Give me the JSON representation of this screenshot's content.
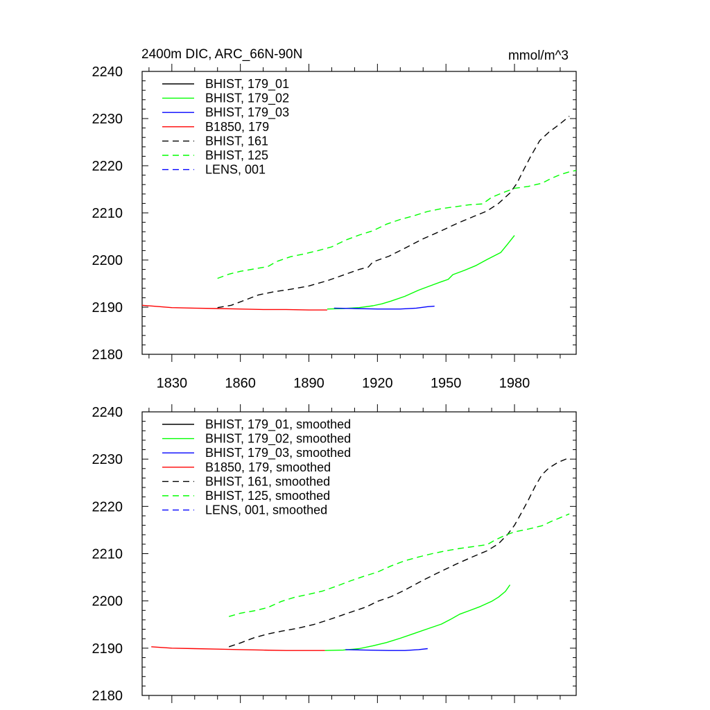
{
  "chart_data": [
    {
      "type": "line",
      "title": "2400m DIC, ARC_66N-90N",
      "units": "mmol/m^3",
      "xlim": [
        1817,
        2007
      ],
      "ylim": [
        2180,
        2240
      ],
      "yticks": [
        2180,
        2190,
        2200,
        2210,
        2220,
        2230,
        2240
      ],
      "xticks": [
        1830,
        1860,
        1890,
        1920,
        1950,
        1980
      ],
      "xtick_labels": [
        "1830",
        "1860",
        "1890",
        "1920",
        "1950",
        "1980"
      ],
      "show_x_labels": true,
      "legend_position": "top-left",
      "series": [
        {
          "name": "BHIST, 179_01",
          "color": "#000000",
          "dash": "solid",
          "x": [],
          "y": []
        },
        {
          "name": "BHIST, 179_02",
          "color": "#00ff00",
          "dash": "solid",
          "x": [
            1898,
            1905,
            1912,
            1918,
            1922,
            1926,
            1932,
            1938,
            1943,
            1948,
            1951,
            1953,
            1958,
            1963,
            1968,
            1974,
            1977,
            1980
          ],
          "y": [
            2189.6,
            2189.7,
            2189.9,
            2190.3,
            2190.7,
            2191.3,
            2192.3,
            2193.6,
            2194.5,
            2195.4,
            2195.9,
            2196.9,
            2197.8,
            2198.8,
            2200.1,
            2201.6,
            2203.4,
            2205.2
          ]
        },
        {
          "name": "BHIST, 179_03",
          "color": "#0000ff",
          "dash": "solid",
          "x": [
            1901,
            1910,
            1920,
            1930,
            1937,
            1942,
            1945
          ],
          "y": [
            2189.8,
            2189.7,
            2189.6,
            2189.6,
            2189.8,
            2190.1,
            2190.2
          ]
        },
        {
          "name": "B1850, 179",
          "color": "#ff0000",
          "dash": "solid",
          "x": [
            1817,
            1822,
            1830,
            1840,
            1850,
            1860,
            1870,
            1880,
            1890,
            1898
          ],
          "y": [
            2190.4,
            2190.2,
            2189.9,
            2189.8,
            2189.7,
            2189.6,
            2189.5,
            2189.5,
            2189.4,
            2189.4
          ]
        },
        {
          "name": "BHIST, 161",
          "color": "#000000",
          "dash": "dash",
          "x": [
            1850,
            1856,
            1862,
            1868,
            1875,
            1882,
            1890,
            1898,
            1905,
            1912,
            1916,
            1918,
            1925,
            1932,
            1940,
            1948,
            1955,
            1962,
            1968,
            1973,
            1978,
            1981,
            1984,
            1987,
            1991,
            1995,
            2000,
            2004
          ],
          "y": [
            2189.9,
            2190.4,
            2191.5,
            2192.6,
            2193.3,
            2193.8,
            2194.5,
            2195.6,
            2196.8,
            2198.0,
            2198.5,
            2199.6,
            2200.8,
            2202.5,
            2204.5,
            2206.2,
            2207.8,
            2209.2,
            2210.4,
            2212.0,
            2214.2,
            2216.2,
            2219.1,
            2221.9,
            2225.3,
            2227.1,
            2228.9,
            2230.5
          ]
        },
        {
          "name": "BHIST, 125",
          "color": "#00ff00",
          "dash": "dash",
          "x": [
            1850,
            1855,
            1860,
            1866,
            1872,
            1876,
            1882,
            1888,
            1894,
            1900,
            1906,
            1912,
            1918,
            1924,
            1930,
            1936,
            1942,
            1948,
            1954,
            1960,
            1966,
            1970,
            1974,
            1980,
            1986,
            1992,
            1996,
            2000,
            2004,
            2007
          ],
          "y": [
            2196.1,
            2197.0,
            2197.6,
            2198.1,
            2198.6,
            2199.7,
            2200.7,
            2201.3,
            2202.0,
            2202.8,
            2204.2,
            2205.3,
            2206.2,
            2207.6,
            2208.6,
            2209.4,
            2210.3,
            2210.9,
            2211.3,
            2211.7,
            2211.9,
            2213.3,
            2214.1,
            2215.2,
            2215.6,
            2216.3,
            2217.3,
            2218.1,
            2218.7,
            2219.0
          ]
        },
        {
          "name": "LENS, 001",
          "color": "#0000ff",
          "dash": "dash",
          "x": [],
          "y": []
        }
      ]
    },
    {
      "type": "line",
      "title": "",
      "units": "",
      "xlim": [
        1817,
        2007
      ],
      "ylim": [
        2180,
        2240
      ],
      "yticks": [
        2180,
        2190,
        2200,
        2210,
        2220,
        2230,
        2240
      ],
      "xticks": [
        1830,
        1860,
        1890,
        1920,
        1950,
        1980
      ],
      "xtick_labels": [],
      "show_x_labels": false,
      "legend_position": "top-left",
      "series": [
        {
          "name": "BHIST, 179_01, smoothed",
          "color": "#000000",
          "dash": "solid",
          "x": [],
          "y": []
        },
        {
          "name": "BHIST, 179_02, smoothed",
          "color": "#00ff00",
          "dash": "solid",
          "x": [
            1897,
            1905,
            1912,
            1918,
            1924,
            1930,
            1936,
            1942,
            1948,
            1952,
            1956,
            1960,
            1965,
            1970,
            1973,
            1976,
            1978
          ],
          "y": [
            2189.5,
            2189.6,
            2189.9,
            2190.5,
            2191.2,
            2192.1,
            2193.1,
            2194.1,
            2195.1,
            2196.1,
            2197.2,
            2197.9,
            2198.8,
            2199.9,
            2200.8,
            2202.0,
            2203.4
          ]
        },
        {
          "name": "BHIST, 179_03, smoothed",
          "color": "#0000ff",
          "dash": "solid",
          "x": [
            1906,
            1915,
            1925,
            1932,
            1938,
            1942
          ],
          "y": [
            2189.7,
            2189.6,
            2189.5,
            2189.5,
            2189.7,
            2189.9
          ]
        },
        {
          "name": "B1850, 179, smoothed",
          "color": "#ff0000",
          "dash": "solid",
          "x": [
            1821,
            1830,
            1840,
            1850,
            1860,
            1870,
            1880,
            1890,
            1897
          ],
          "y": [
            2190.3,
            2190.0,
            2189.9,
            2189.8,
            2189.7,
            2189.6,
            2189.5,
            2189.5,
            2189.5
          ]
        },
        {
          "name": "BHIST, 161, smoothed",
          "color": "#000000",
          "dash": "dash",
          "x": [
            1855,
            1860,
            1866,
            1872,
            1878,
            1885,
            1892,
            1898,
            1904,
            1910,
            1915,
            1920,
            1926,
            1932,
            1940,
            1948,
            1955,
            1962,
            1968,
            1973,
            1977,
            1980,
            1983,
            1986,
            1989,
            1992,
            1995,
            1999,
            2004
          ],
          "y": [
            2190.3,
            2191.1,
            2192.2,
            2193.0,
            2193.6,
            2194.2,
            2195.0,
            2195.9,
            2196.9,
            2197.9,
            2198.7,
            2199.9,
            2200.9,
            2202.3,
            2204.4,
            2206.3,
            2207.9,
            2209.4,
            2210.6,
            2212.1,
            2214.1,
            2216.0,
            2218.6,
            2221.3,
            2224.2,
            2226.7,
            2228.1,
            2229.3,
            2230.3
          ]
        },
        {
          "name": "BHIST, 125, smoothed",
          "color": "#00ff00",
          "dash": "dash",
          "x": [
            1855,
            1860,
            1866,
            1872,
            1878,
            1884,
            1890,
            1896,
            1902,
            1908,
            1914,
            1920,
            1926,
            1932,
            1938,
            1944,
            1950,
            1956,
            1962,
            1968,
            1972,
            1976,
            1980,
            1986,
            1992,
            1996,
            2000,
            2004
          ],
          "y": [
            2196.7,
            2197.4,
            2197.9,
            2198.6,
            2199.9,
            2200.8,
            2201.4,
            2202.1,
            2203.1,
            2204.2,
            2205.2,
            2206.1,
            2207.4,
            2208.5,
            2209.3,
            2210.0,
            2210.6,
            2211.1,
            2211.5,
            2211.9,
            2213.0,
            2213.9,
            2214.6,
            2215.2,
            2215.9,
            2216.8,
            2217.6,
            2218.4
          ]
        },
        {
          "name": "LENS, 001, smoothed",
          "color": "#0000ff",
          "dash": "dash",
          "x": [],
          "y": []
        }
      ]
    }
  ]
}
